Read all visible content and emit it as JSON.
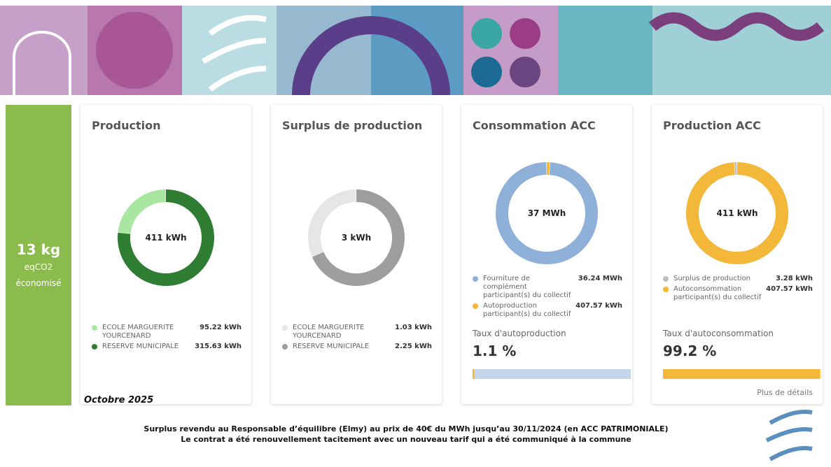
{
  "co2": {
    "value": "13 kg",
    "unit": "eqCO2",
    "caption": "économisé"
  },
  "period": "Octobre 2025",
  "cards": [
    {
      "title": "Production",
      "center": "411 kWh",
      "items": [
        {
          "label": "ECOLE MARGUERITE YOURCENARD",
          "value": 95.22,
          "value_label": "95.22 kWh",
          "color": "#a8e6a1"
        },
        {
          "label": "RESERVE MUNICIPALE",
          "value": 315.63,
          "value_label": "315.63 kWh",
          "color": "#2e7d32"
        }
      ]
    },
    {
      "title": "Surplus de production",
      "center": "3 kWh",
      "items": [
        {
          "label": "ECOLE MARGUERITE YOURCENARD",
          "value": 1.03,
          "value_label": "1.03 kWh",
          "color": "#e6e6e6"
        },
        {
          "label": "RESERVE MUNICIPALE",
          "value": 2.25,
          "value_label": "2.25 kWh",
          "color": "#9e9e9e"
        }
      ]
    },
    {
      "title": "Consommation ACC",
      "center": "37 MWh",
      "items": [
        {
          "label": "Fourniture de complément participant(s) du collectif",
          "value": 36240,
          "value_label": "36.24 MWh",
          "color": "#8fb0d9"
        },
        {
          "label": "Autoproduction participant(s) du collectif",
          "value": 407.57,
          "value_label": "407.57 kWh",
          "color": "#f3b73a"
        }
      ],
      "rate": {
        "label": "Taux d'autoproduction",
        "value": 1.1,
        "value_label": "1.1 %",
        "color": "#f3b73a",
        "track": "#c5d6ea"
      }
    },
    {
      "title": "Production ACC",
      "center": "411 kWh",
      "items": [
        {
          "label": "Surplus de production",
          "value": 3.28,
          "value_label": "3.28 kWh",
          "color": "#bdbdbd"
        },
        {
          "label": "Autoconsommation participant(s) du collectif",
          "value": 407.57,
          "value_label": "407.57 kWh",
          "color": "#f3b73a"
        }
      ],
      "rate": {
        "label": "Taux d'autoconsommation",
        "value": 99.2,
        "value_label": "99.2 %",
        "color": "#f3b73a",
        "track": "#f8e1b0"
      },
      "link": "Plus de détails"
    }
  ],
  "footer": {
    "line1": "Surplus revendu au Responsable d’équilibre (Elmy) au prix de 40€ du MWh jusqu’au 30/11/2024 (en ACC PATRIMONIALE)",
    "line2": "Le contrat a été renouvellement tacitement avec un nouveau tarif qui a été communiqué à la commune"
  }
}
